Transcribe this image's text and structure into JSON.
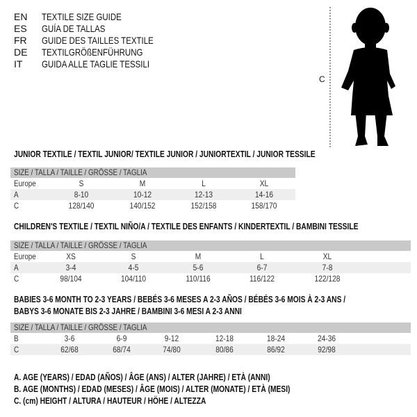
{
  "languages": [
    {
      "code": "EN",
      "text": "TEXTILE SIZE GUIDE"
    },
    {
      "code": "ES",
      "text": "GUÍA DE TALLAS"
    },
    {
      "code": "FR",
      "text": "GUIDE DES TAILLES TEXTILE"
    },
    {
      "code": "DE",
      "text": "TEXTILGRÖßENFÜHRUNG"
    },
    {
      "code": "IT",
      "text": "GUIDA ALLE TAGLIE TESSILI"
    }
  ],
  "figure": {
    "measure_label": "C"
  },
  "tables": [
    {
      "title": [
        "JUNIOR TEXTILE / TEXTIL JUNIOR/ TEXTILE JUNIOR / JUNIORTEXTIL / JUNIOR TESSILE"
      ],
      "header": "SIZE / TALLA / TAILLE / GRÖSSE / TAGLIA",
      "rows": [
        {
          "label": "Europe",
          "values": [
            "S",
            "M",
            "L",
            "XL"
          ]
        },
        {
          "label": "A",
          "values": [
            "8-10",
            "10-12",
            "12-13",
            "14-16"
          ]
        },
        {
          "label": "C",
          "values": [
            "128/140",
            "140/152",
            "152/158",
            "158/170"
          ]
        }
      ]
    },
    {
      "title": [
        "CHILDREN'S TEXTILE / TEXTIL NIÑO/A / TEXTILE DES ENFANTS / KINDERTEXTIL / BAMBINI TESSILE"
      ],
      "header": "SIZE / TALLA / TAILLE / GRÖSSE / TAGLIA",
      "rows": [
        {
          "label": "Europe",
          "values": [
            "XS",
            "S",
            "M",
            "L",
            "XL"
          ]
        },
        {
          "label": "A",
          "values": [
            "3-4",
            "4-5",
            "5-6",
            "6-7",
            "7-8"
          ]
        },
        {
          "label": "C",
          "values": [
            "98/104",
            "104/110",
            "110/116",
            "116/122",
            "122/128"
          ]
        }
      ]
    },
    {
      "title": [
        "BABIES 3-6 MONTH TO 2-3 YEARS / BEBÉS 3-6 MESES A 2-3 AÑOS / BÉBÉS 3-6 MOIS À 2-3 ANS /",
        "BABYS 3-6 MONATE BIS 2-3 JAHRE / BAMBINI 3-6 MESI A 2-3 ANNI"
      ],
      "header": "SIZE / TALLA / TAILLE / GRÖSSE / TAGLIA",
      "rows": [
        {
          "label": "B",
          "values": [
            "3-6",
            "6-9",
            "9-12",
            "12-18",
            "18-24",
            "24-36"
          ]
        },
        {
          "label": "C",
          "values": [
            "62/68",
            "68/74",
            "74/80",
            "80/86",
            "86/92",
            "92/98"
          ]
        }
      ]
    }
  ],
  "legend": [
    "A. AGE (YEARS) / EDAD (AÑOS) / ÂGE (ANS) / ALTER (JAHRE) / ETÀ (ANNI)",
    "B. AGE (MONTHS) / EDAD (MESES) / ÂGE (MOIS) / ALTER (MONATE) / ETÀ (MESI)",
    "C. (cm) HEIGHT / ALTURA / HAUTEUR / HÖHE / ALTEZZA"
  ]
}
